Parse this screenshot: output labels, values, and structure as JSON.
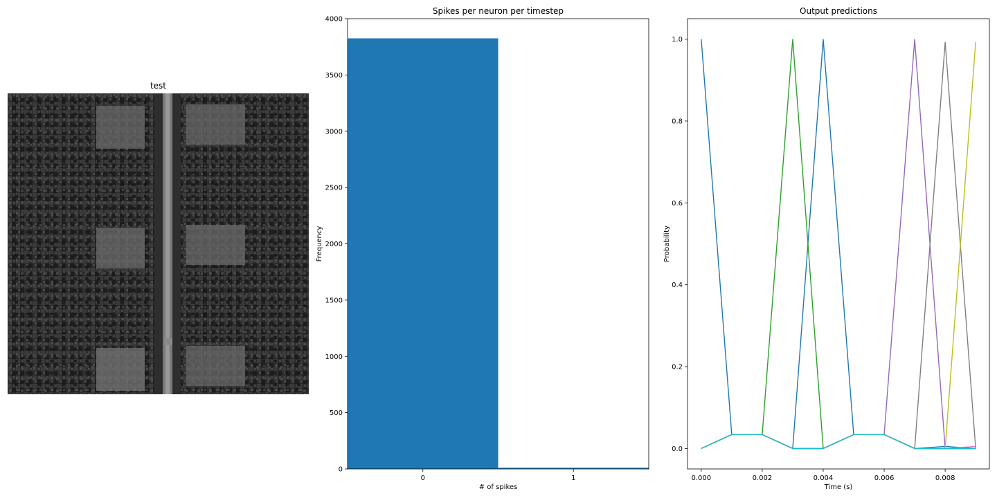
{
  "image_panel": {
    "title": "test"
  },
  "chart_data": [
    {
      "type": "bar",
      "title": "Spikes per neuron per timestep",
      "xlabel": "# of spikes",
      "ylabel": "Frequency",
      "categories": [
        "0",
        "1"
      ],
      "values": [
        3825,
        11
      ],
      "ylim": [
        0,
        4000
      ],
      "yticks": [
        0,
        500,
        1000,
        1500,
        2000,
        2500,
        3000,
        3500,
        4000
      ],
      "bar_color": "#1f77b4"
    },
    {
      "type": "line",
      "title": "Output predictions",
      "xlabel": "Time (s)",
      "ylabel": "Probability",
      "x": [
        0.0,
        0.001,
        0.002,
        0.003,
        0.004,
        0.005,
        0.006,
        0.007,
        0.008,
        0.009
      ],
      "xticks": [
        "0.000",
        "0.002",
        "0.004",
        "0.006",
        "0.008"
      ],
      "yticks": [
        "0.0",
        "0.2",
        "0.4",
        "0.6",
        "0.8",
        "1.0"
      ],
      "xlim": [
        -0.00045,
        0.00945
      ],
      "ylim": [
        -0.05,
        1.05
      ],
      "series": [
        {
          "color": "#1f77b4",
          "values": [
            1.0,
            0.034,
            0.034,
            0.0,
            1.0,
            0.034,
            0.034,
            0.0,
            0.005,
            0.0
          ]
        },
        {
          "color": "#ff7f0e",
          "values": [
            0.0,
            0.034,
            0.034,
            0.0,
            0.0,
            0.034,
            0.034,
            0.0,
            0.0,
            0.0
          ]
        },
        {
          "color": "#2ca02c",
          "values": [
            0.0,
            0.034,
            0.034,
            1.0,
            0.0,
            0.034,
            0.034,
            0.0,
            0.0,
            0.0
          ]
        },
        {
          "color": "#d62728",
          "values": [
            0.0,
            0.034,
            0.034,
            0.0,
            0.0,
            0.034,
            0.034,
            0.0,
            0.0,
            0.0
          ]
        },
        {
          "color": "#9467bd",
          "values": [
            0.0,
            0.034,
            0.034,
            0.0,
            0.0,
            0.034,
            0.034,
            1.0,
            0.0,
            0.0
          ]
        },
        {
          "color": "#8c564b",
          "values": [
            0.0,
            0.034,
            0.034,
            0.0,
            0.0,
            0.034,
            0.034,
            0.0,
            0.0,
            0.0
          ]
        },
        {
          "color": "#e377c2",
          "values": [
            0.0,
            0.034,
            0.034,
            0.0,
            0.0,
            0.034,
            0.034,
            0.0,
            0.0,
            0.005
          ]
        },
        {
          "color": "#7f7f7f",
          "values": [
            0.0,
            0.034,
            0.034,
            0.0,
            0.0,
            0.034,
            0.034,
            0.0,
            0.993,
            0.0
          ]
        },
        {
          "color": "#bcbd22",
          "values": [
            0.0,
            0.034,
            0.034,
            0.0,
            0.0,
            0.034,
            0.034,
            0.0,
            0.0,
            0.993
          ]
        },
        {
          "color": "#17becf",
          "values": [
            0.0,
            0.034,
            0.034,
            0.0,
            0.0,
            0.034,
            0.034,
            0.0,
            0.0,
            0.0
          ]
        }
      ]
    }
  ]
}
